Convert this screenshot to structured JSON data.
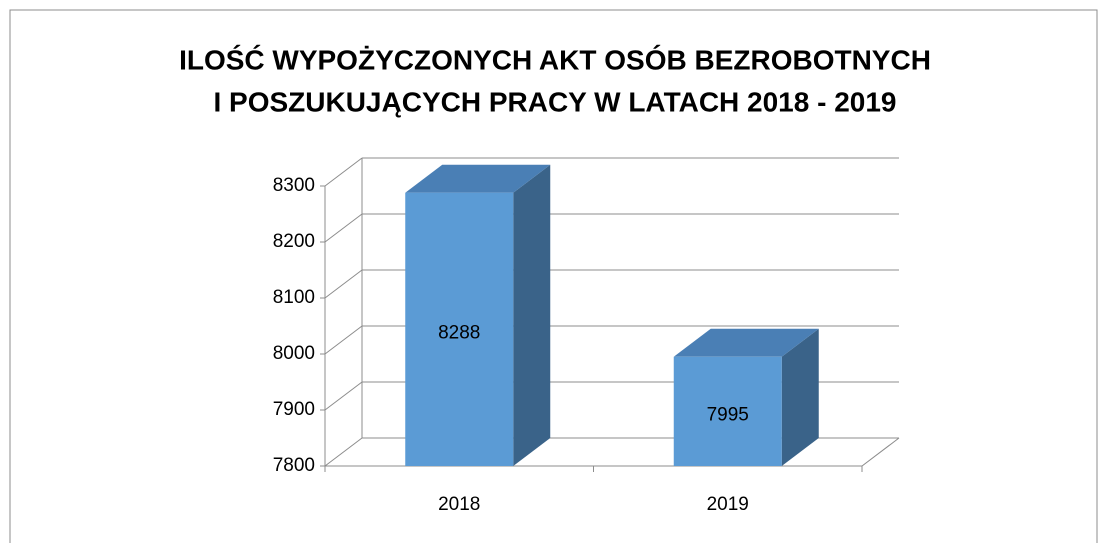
{
  "chart_data": {
    "type": "bar3d",
    "title": [
      "ILOŚĆ WYPOŻYCZONYCH AKT OSÓB BEZROBOTNYCH",
      "I POSZUKUJĄCYCH PRACY W LATACH 2018 - 2019"
    ],
    "categories": [
      "2018",
      "2019"
    ],
    "values": [
      8288,
      7995
    ],
    "color": "#5b9bd5",
    "ylim": [
      7800,
      8300
    ],
    "yticks": [
      7800,
      7900,
      8000,
      8100,
      8200,
      8300
    ],
    "grid": true
  }
}
